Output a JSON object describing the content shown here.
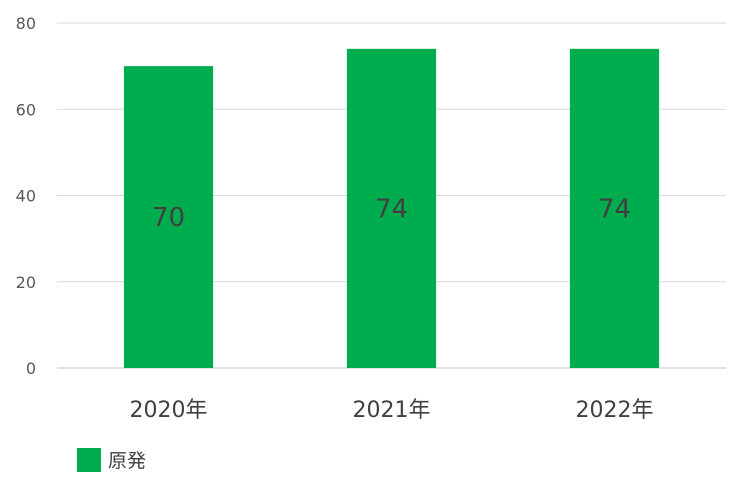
{
  "chart_data": {
    "type": "bar",
    "categories": [
      "2020年",
      "2021年",
      "2022年"
    ],
    "series": [
      {
        "name": "原発",
        "values": [
          70,
          74,
          74
        ],
        "color": "#00ad4e"
      }
    ],
    "ylim": [
      0,
      80
    ],
    "yticks": [
      0,
      20,
      40,
      60,
      80
    ],
    "grid": true,
    "legend": "bottom-left",
    "data_labels": true
  }
}
